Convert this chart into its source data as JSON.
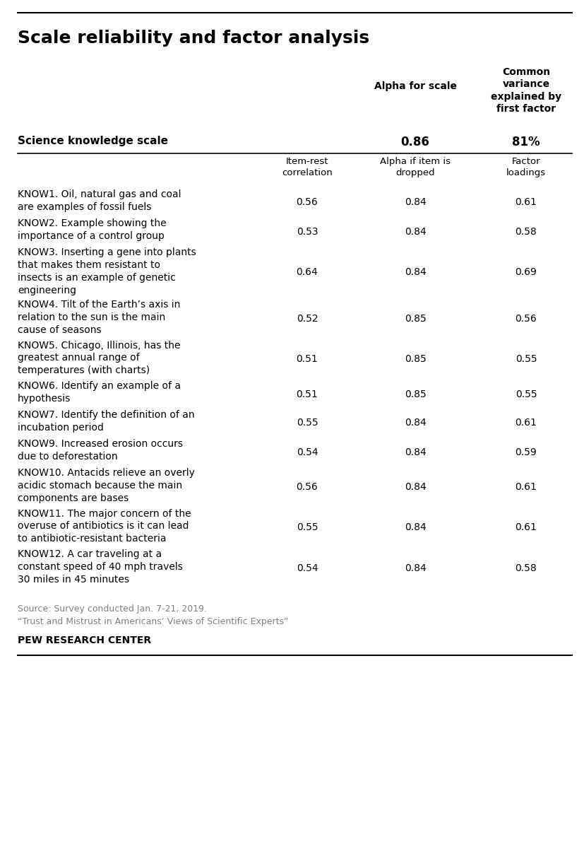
{
  "title": "Scale reliability and factor analysis",
  "header_col1": "Science knowledge scale",
  "header_col2_line1": "Alpha for scale",
  "header_col2_value": "0.86",
  "header_col3_line1": "Common\nvariance\nexplained by\nfirst factor",
  "header_col3_value": "81%",
  "subheader_col2": "Item-rest\ncorrelation",
  "subheader_col3": "Alpha if item is\ndropped",
  "subheader_col4": "Factor\nloadings",
  "rows": [
    {
      "label": "KNOW1. Oil, natural gas and coal\nare examples of fossil fuels",
      "col2": "0.56",
      "col3": "0.84",
      "col4": "0.61",
      "nlines": 2
    },
    {
      "label": "KNOW2. Example showing the\nimportance of a control group",
      "col2": "0.53",
      "col3": "0.84",
      "col4": "0.58",
      "nlines": 2
    },
    {
      "label": "KNOW3. Inserting a gene into plants\nthat makes them resistant to\ninsects is an example of genetic\nengineering",
      "col2": "0.64",
      "col3": "0.84",
      "col4": "0.69",
      "nlines": 4
    },
    {
      "label": "KNOW4. Tilt of the Earth’s axis in\nrelation to the sun is the main\ncause of seasons",
      "col2": "0.52",
      "col3": "0.85",
      "col4": "0.56",
      "nlines": 3
    },
    {
      "label": "KNOW5. Chicago, Illinois, has the\ngreatest annual range of\ntemperatures (with charts)",
      "col2": "0.51",
      "col3": "0.85",
      "col4": "0.55",
      "nlines": 3
    },
    {
      "label": "KNOW6. Identify an example of a\nhypothesis",
      "col2": "0.51",
      "col3": "0.85",
      "col4": "0.55",
      "nlines": 2
    },
    {
      "label": "KNOW7. Identify the definition of an\nincubation period",
      "col2": "0.55",
      "col3": "0.84",
      "col4": "0.61",
      "nlines": 2
    },
    {
      "label": "KNOW9. Increased erosion occurs\ndue to deforestation",
      "col2": "0.54",
      "col3": "0.84",
      "col4": "0.59",
      "nlines": 2
    },
    {
      "label": "KNOW10. Antacids relieve an overly\nacidic stomach because the main\ncomponents are bases",
      "col2": "0.56",
      "col3": "0.84",
      "col4": "0.61",
      "nlines": 3
    },
    {
      "label": "KNOW11. The major concern of the\noveruse of antibiotics is it can lead\nto antibiotic-resistant bacteria",
      "col2": "0.55",
      "col3": "0.84",
      "col4": "0.61",
      "nlines": 3
    },
    {
      "label": "KNOW12. A car traveling at a\nconstant speed of 40 mph travels\n30 miles in 45 minutes",
      "col2": "0.54",
      "col3": "0.84",
      "col4": "0.58",
      "nlines": 3
    }
  ],
  "source_line1": "Source: Survey conducted Jan. 7-21, 2019.",
  "source_line2": "“Trust and Mistrust in Americans’ Views of Scientific Experts”",
  "footer": "PEW RESEARCH CENTER",
  "bg_color": "#ffffff",
  "text_color": "#000000",
  "source_color": "#808080"
}
